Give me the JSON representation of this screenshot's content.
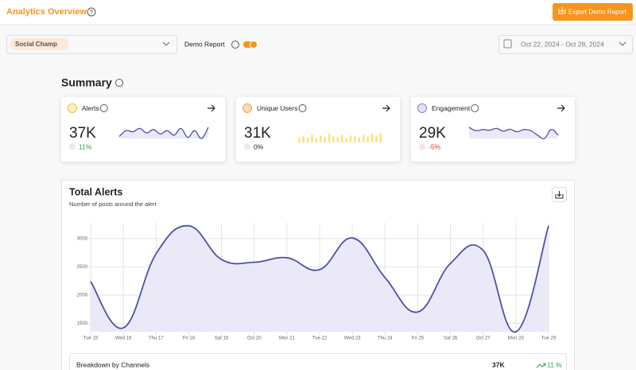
{
  "header": {
    "title": "Analytics Overview",
    "export_button": "Export Demo Report"
  },
  "filters": {
    "brand": "Social Champ",
    "demo_toggle": "Demo Report",
    "date_range": "Oct 22, 2024 - Oct 28, 2024"
  },
  "summary": {
    "title": "Summary",
    "cards": [
      {
        "label": "Alerts",
        "value": "37K",
        "change": "11%",
        "trend": [
          2240,
          2500,
          2450,
          2600,
          2400,
          2550,
          2350,
          2500,
          2300,
          2600,
          2200,
          2500,
          2150,
          2650
        ]
      },
      {
        "label": "Unique Users",
        "value": "31K",
        "change": "0%",
        "trend": [
          5,
          7,
          6,
          9,
          5,
          8,
          6,
          10,
          7,
          6,
          9,
          5,
          8,
          7,
          6,
          9,
          7,
          10,
          8,
          11
        ]
      },
      {
        "label": "Engagement",
        "value": "29K",
        "change": "-5%",
        "trend": [
          2650,
          2500,
          2550,
          2520,
          2600,
          2480,
          2560,
          2450,
          2550,
          2500,
          2300,
          2150,
          2550,
          2300
        ]
      }
    ]
  },
  "chart_data": {
    "type": "line",
    "title": "Total Alerts",
    "subtitle": "Number of posts around the alert",
    "categories": [
      "Tue 15",
      "Wed 16",
      "Thu 17",
      "Fri 18",
      "Sat 19",
      "Oct 20",
      "Mon 21",
      "Tue 22",
      "Wed 23",
      "Thu 24",
      "Fri 25",
      "Sat 26",
      "Oct 27",
      "Mon 28",
      "Tue 29"
    ],
    "values": [
      2240,
      1420,
      2730,
      3225,
      2630,
      2580,
      2660,
      2450,
      3010,
      2310,
      1700,
      2560,
      2790,
      1350,
      3225
    ],
    "color": "#4a52a8",
    "fill": "#ebe9f7",
    "ylim": [
      1350,
      3250
    ],
    "yticks": [
      1500,
      2000,
      2500,
      3000
    ],
    "grid": true
  },
  "breakdown": {
    "title": "Breakdown by Channels",
    "total": "37K",
    "change": "11 %"
  }
}
